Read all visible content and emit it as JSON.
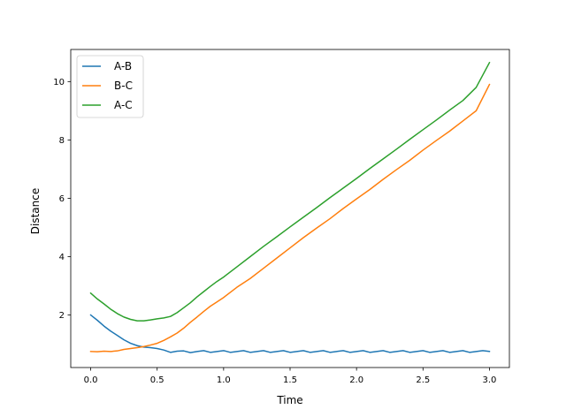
{
  "chart_data": {
    "type": "line",
    "title": "",
    "xlabel": "Time",
    "ylabel": "Distance",
    "xlim": [
      -0.15,
      3.15
    ],
    "ylim": [
      0.2,
      11.1
    ],
    "xticks": [
      {
        "v": 0.0,
        "label": "0.0"
      },
      {
        "v": 0.5,
        "label": "0.5"
      },
      {
        "v": 1.0,
        "label": "1.0"
      },
      {
        "v": 1.5,
        "label": "1.5"
      },
      {
        "v": 2.0,
        "label": "2.0"
      },
      {
        "v": 2.5,
        "label": "2.5"
      },
      {
        "v": 3.0,
        "label": "3.0"
      }
    ],
    "yticks": [
      {
        "v": 2,
        "label": "2"
      },
      {
        "v": 4,
        "label": "4"
      },
      {
        "v": 6,
        "label": "6"
      },
      {
        "v": 8,
        "label": "8"
      },
      {
        "v": 10,
        "label": "10"
      }
    ],
    "grid": false,
    "legend": {
      "position": "top-left"
    },
    "series": [
      {
        "name": "A-B",
        "color": "#1f77b4",
        "x": [
          0.0,
          0.05,
          0.1,
          0.15,
          0.2,
          0.25,
          0.3,
          0.35,
          0.4,
          0.45,
          0.5,
          0.55,
          0.6,
          0.65,
          0.7,
          0.75,
          0.8,
          0.85,
          0.9,
          0.95,
          1.0,
          1.05,
          1.1,
          1.15,
          1.2,
          1.25,
          1.3,
          1.35,
          1.4,
          1.45,
          1.5,
          1.55,
          1.6,
          1.65,
          1.7,
          1.75,
          1.8,
          1.85,
          1.9,
          1.95,
          2.0,
          2.05,
          2.1,
          2.15,
          2.2,
          2.25,
          2.3,
          2.35,
          2.4,
          2.45,
          2.5,
          2.55,
          2.6,
          2.65,
          2.7,
          2.75,
          2.8,
          2.85,
          2.9,
          2.95,
          3.0
        ],
        "values": [
          2.0,
          1.82,
          1.62,
          1.45,
          1.3,
          1.15,
          1.03,
          0.95,
          0.9,
          0.88,
          0.85,
          0.8,
          0.72,
          0.76,
          0.77,
          0.71,
          0.75,
          0.78,
          0.72,
          0.75,
          0.78,
          0.72,
          0.75,
          0.78,
          0.72,
          0.75,
          0.78,
          0.72,
          0.75,
          0.78,
          0.72,
          0.75,
          0.78,
          0.72,
          0.75,
          0.78,
          0.72,
          0.75,
          0.78,
          0.72,
          0.75,
          0.78,
          0.72,
          0.75,
          0.78,
          0.72,
          0.75,
          0.78,
          0.72,
          0.75,
          0.78,
          0.72,
          0.75,
          0.78,
          0.72,
          0.75,
          0.78,
          0.72,
          0.75,
          0.78,
          0.75
        ]
      },
      {
        "name": "B-C",
        "color": "#ff7f0e",
        "x": [
          0.0,
          0.05,
          0.1,
          0.15,
          0.2,
          0.25,
          0.3,
          0.35,
          0.4,
          0.45,
          0.5,
          0.55,
          0.6,
          0.65,
          0.7,
          0.75,
          0.8,
          0.85,
          0.9,
          0.95,
          1.0,
          1.1,
          1.2,
          1.3,
          1.4,
          1.5,
          1.6,
          1.7,
          1.8,
          1.9,
          2.0,
          2.1,
          2.2,
          2.3,
          2.4,
          2.5,
          2.6,
          2.7,
          2.8,
          2.9,
          3.0
        ],
        "values": [
          0.75,
          0.74,
          0.76,
          0.75,
          0.77,
          0.82,
          0.85,
          0.88,
          0.92,
          0.97,
          1.03,
          1.13,
          1.25,
          1.38,
          1.55,
          1.75,
          1.93,
          2.12,
          2.3,
          2.45,
          2.6,
          2.95,
          3.25,
          3.6,
          3.95,
          4.3,
          4.65,
          4.98,
          5.3,
          5.65,
          5.98,
          6.3,
          6.65,
          6.98,
          7.3,
          7.65,
          7.98,
          8.3,
          8.65,
          9.0,
          9.9
        ]
      },
      {
        "name": "A-C",
        "color": "#2ca02c",
        "x": [
          0.0,
          0.05,
          0.1,
          0.15,
          0.2,
          0.25,
          0.3,
          0.35,
          0.4,
          0.45,
          0.5,
          0.55,
          0.6,
          0.65,
          0.7,
          0.75,
          0.8,
          0.85,
          0.9,
          0.95,
          1.0,
          1.1,
          1.2,
          1.3,
          1.4,
          1.5,
          1.6,
          1.7,
          1.8,
          1.9,
          2.0,
          2.1,
          2.2,
          2.3,
          2.4,
          2.5,
          2.6,
          2.7,
          2.8,
          2.9,
          3.0
        ],
        "values": [
          2.75,
          2.55,
          2.38,
          2.2,
          2.05,
          1.93,
          1.85,
          1.8,
          1.8,
          1.83,
          1.87,
          1.9,
          1.95,
          2.08,
          2.25,
          2.42,
          2.62,
          2.8,
          2.98,
          3.15,
          3.3,
          3.65,
          4.0,
          4.35,
          4.68,
          5.02,
          5.35,
          5.68,
          6.02,
          6.35,
          6.68,
          7.02,
          7.35,
          7.68,
          8.02,
          8.35,
          8.68,
          9.02,
          9.35,
          9.8,
          10.65
        ]
      }
    ]
  }
}
